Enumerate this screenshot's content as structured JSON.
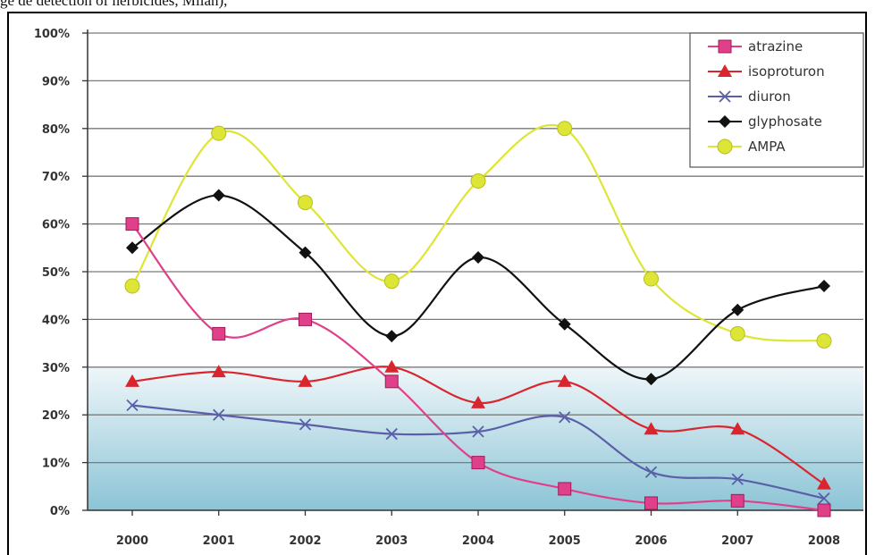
{
  "caption": "ge de detection of herbicides, Milan),",
  "chart_data": {
    "type": "line",
    "x": [
      "2000",
      "2001",
      "2002",
      "2003",
      "2004",
      "2005",
      "2006",
      "2007",
      "2008"
    ],
    "ylim": [
      0,
      100
    ],
    "y_ticks": [
      "0%",
      "10%",
      "20%",
      "30%",
      "40%",
      "50%",
      "60%",
      "70%",
      "80%",
      "90%",
      "100%"
    ],
    "grid": true,
    "legend_position": "top-right",
    "series": [
      {
        "name": "atrazine",
        "color": "#e0408a",
        "marker": "square",
        "values": [
          60,
          37,
          40,
          27,
          10,
          4.5,
          1.5,
          2,
          0
        ]
      },
      {
        "name": "isoproturon",
        "color": "#d9262e",
        "marker": "triangle",
        "values": [
          27,
          29,
          27,
          30,
          22.5,
          27,
          17,
          17,
          5.5
        ]
      },
      {
        "name": "diuron",
        "color": "#5a5fa8",
        "marker": "x",
        "values": [
          22,
          20,
          18,
          16,
          16.5,
          19.5,
          8,
          6.5,
          2.5
        ]
      },
      {
        "name": "glyphosate",
        "color": "#111111",
        "marker": "diamond",
        "values": [
          55,
          66,
          54,
          36.5,
          53,
          39,
          27.5,
          42,
          47
        ]
      },
      {
        "name": "AMPA",
        "color": "#dde637",
        "marker": "circle",
        "values": [
          47,
          79,
          64.5,
          48,
          69,
          80,
          48.5,
          37,
          35.5
        ]
      }
    ]
  }
}
